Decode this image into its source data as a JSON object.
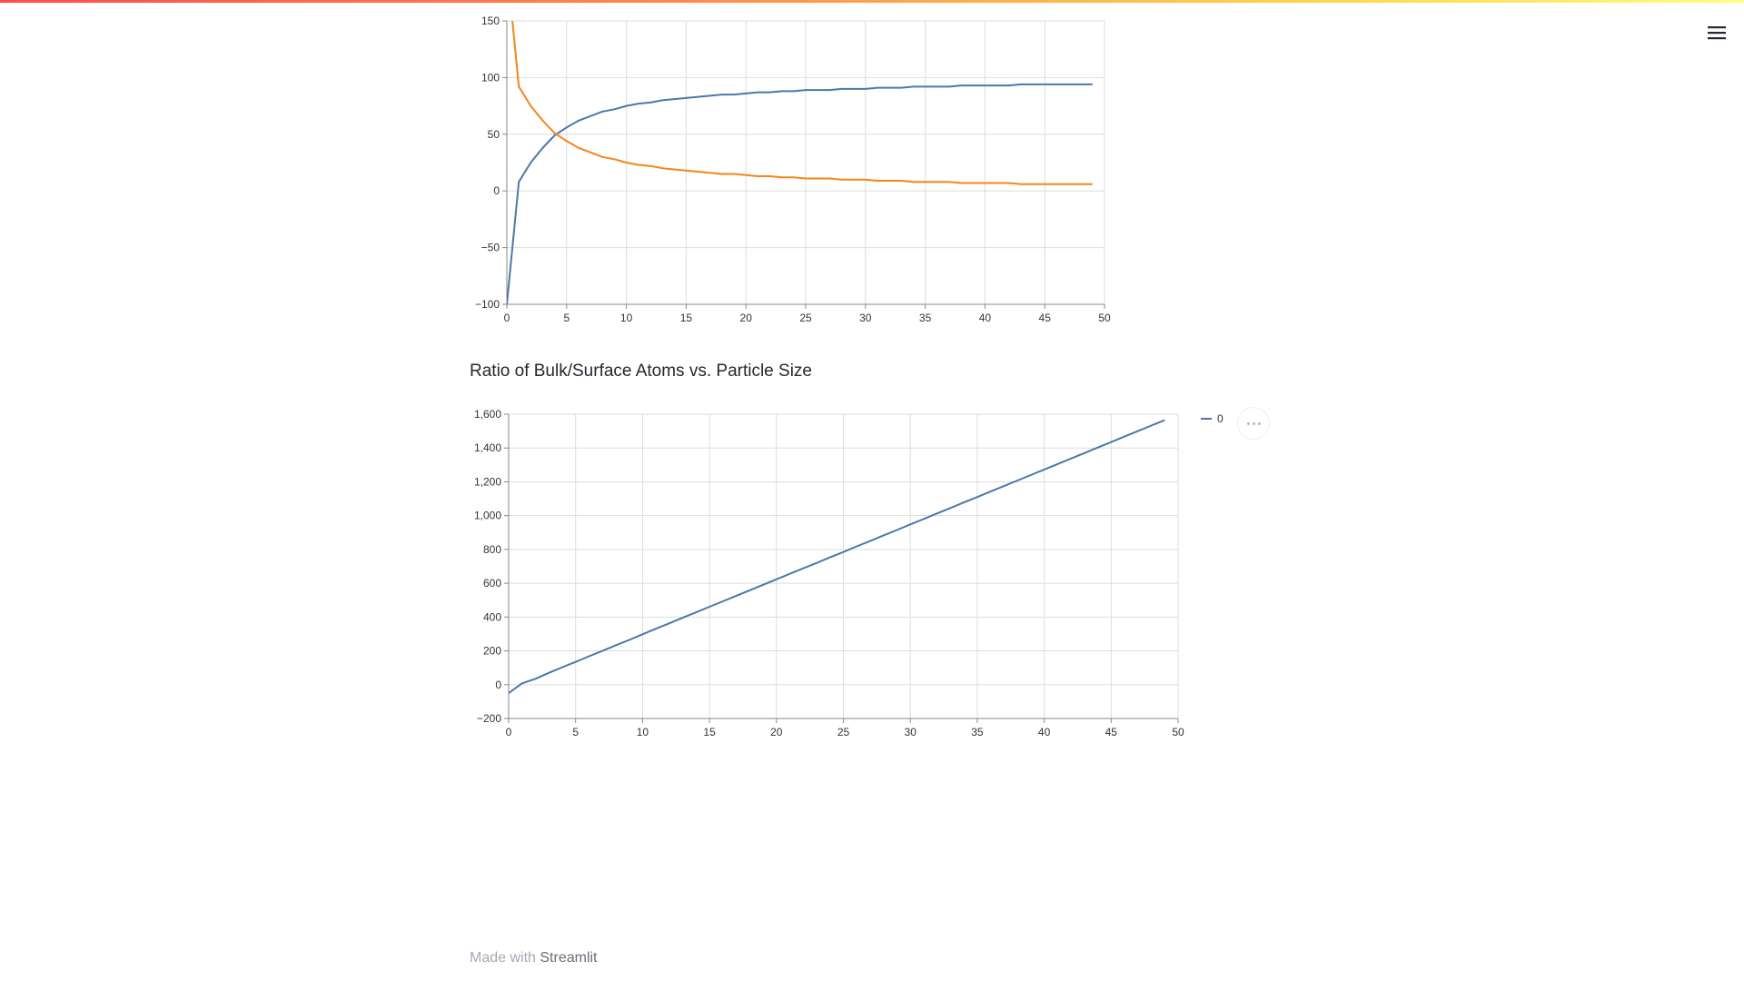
{
  "header": {
    "menu_icon": "hamburger-menu-icon",
    "accent_gradient": [
      "#ff4b4b",
      "#ff8c4b",
      "#ffd34b",
      "#fffd80"
    ]
  },
  "chart1": {
    "title": "",
    "colors": {
      "series_a": "#4c78a8",
      "series_b": "#f58518"
    }
  },
  "chart2": {
    "title": "Ratio of Bulk/Surface Atoms vs. Particle Size",
    "legend_label": "0",
    "line_color": "#4c78a8",
    "actions_icon": "more-options-icon"
  },
  "footer": {
    "prefix": "Made with",
    "link": "Streamlit"
  },
  "chart_data": [
    {
      "type": "line",
      "title": "",
      "xlabel": "",
      "ylabel": "",
      "xlim": [
        0,
        50
      ],
      "ylim": [
        -100,
        150
      ],
      "xticks": [
        0,
        5,
        10,
        15,
        20,
        25,
        30,
        35,
        40,
        45,
        50
      ],
      "yticks": [
        -100,
        -50,
        0,
        50,
        100,
        150
      ],
      "ytick_labels": [
        "−100",
        "−50",
        "0",
        "50",
        "100",
        "150"
      ],
      "grid": true,
      "x": [
        0,
        1,
        2,
        3,
        4,
        5,
        6,
        7,
        8,
        9,
        10,
        11,
        12,
        13,
        14,
        15,
        16,
        17,
        18,
        19,
        20,
        21,
        22,
        23,
        24,
        25,
        26,
        27,
        28,
        29,
        30,
        31,
        32,
        33,
        34,
        35,
        36,
        37,
        38,
        39,
        40,
        41,
        42,
        43,
        44,
        45,
        46,
        47,
        48,
        49
      ],
      "series": [
        {
          "color": "#4c78a8",
          "values": [
            -100,
            8,
            25,
            38,
            49,
            56,
            62,
            66,
            70,
            72,
            75,
            77,
            78,
            80,
            81,
            82,
            83,
            84,
            85,
            85,
            86,
            87,
            87,
            88,
            88,
            89,
            89,
            89,
            90,
            90,
            90,
            91,
            91,
            91,
            92,
            92,
            92,
            92,
            93,
            93,
            93,
            93,
            93,
            94,
            94,
            94,
            94,
            94,
            94,
            94
          ]
        },
        {
          "color": "#f58518",
          "values": [
            200,
            92,
            75,
            62,
            51,
            44,
            38,
            34,
            30,
            28,
            25,
            23,
            22,
            20,
            19,
            18,
            17,
            16,
            15,
            15,
            14,
            13,
            13,
            12,
            12,
            11,
            11,
            11,
            10,
            10,
            10,
            9,
            9,
            9,
            8,
            8,
            8,
            8,
            7,
            7,
            7,
            7,
            7,
            6,
            6,
            6,
            6,
            6,
            6,
            6
          ]
        }
      ]
    },
    {
      "type": "line",
      "title": "Ratio of Bulk/Surface Atoms vs. Particle Size",
      "xlabel": "",
      "ylabel": "",
      "xlim": [
        0,
        50
      ],
      "ylim": [
        -200,
        1600
      ],
      "xticks": [
        0,
        5,
        10,
        15,
        20,
        25,
        30,
        35,
        40,
        45,
        50
      ],
      "yticks": [
        -200,
        0,
        200,
        400,
        600,
        800,
        1000,
        1200,
        1400,
        1600
      ],
      "ytick_labels": [
        "−200",
        "0",
        "200",
        "400",
        "600",
        "800",
        "1,000",
        "1,200",
        "1,400",
        "1,600"
      ],
      "grid": true,
      "legend_position": "right",
      "x": [
        0,
        1,
        2,
        3,
        4,
        5,
        6,
        7,
        8,
        9,
        10,
        11,
        12,
        13,
        14,
        15,
        16,
        17,
        18,
        19,
        20,
        21,
        22,
        23,
        24,
        25,
        26,
        27,
        28,
        29,
        30,
        31,
        32,
        33,
        34,
        35,
        36,
        37,
        38,
        39,
        40,
        41,
        42,
        43,
        44,
        45,
        46,
        47,
        48,
        49
      ],
      "series": [
        {
          "name": "0",
          "color": "#4c78a8",
          "values": [
            -50,
            8,
            35,
            70,
            103,
            135,
            168,
            200,
            233,
            265,
            298,
            331,
            363,
            396,
            428,
            461,
            493,
            526,
            558,
            591,
            623,
            656,
            688,
            720,
            753,
            785,
            818,
            850,
            883,
            915,
            948,
            980,
            1013,
            1045,
            1078,
            1110,
            1143,
            1175,
            1208,
            1240,
            1273,
            1305,
            1338,
            1370,
            1403,
            1435,
            1468,
            1500,
            1533,
            1565
          ]
        }
      ]
    }
  ]
}
